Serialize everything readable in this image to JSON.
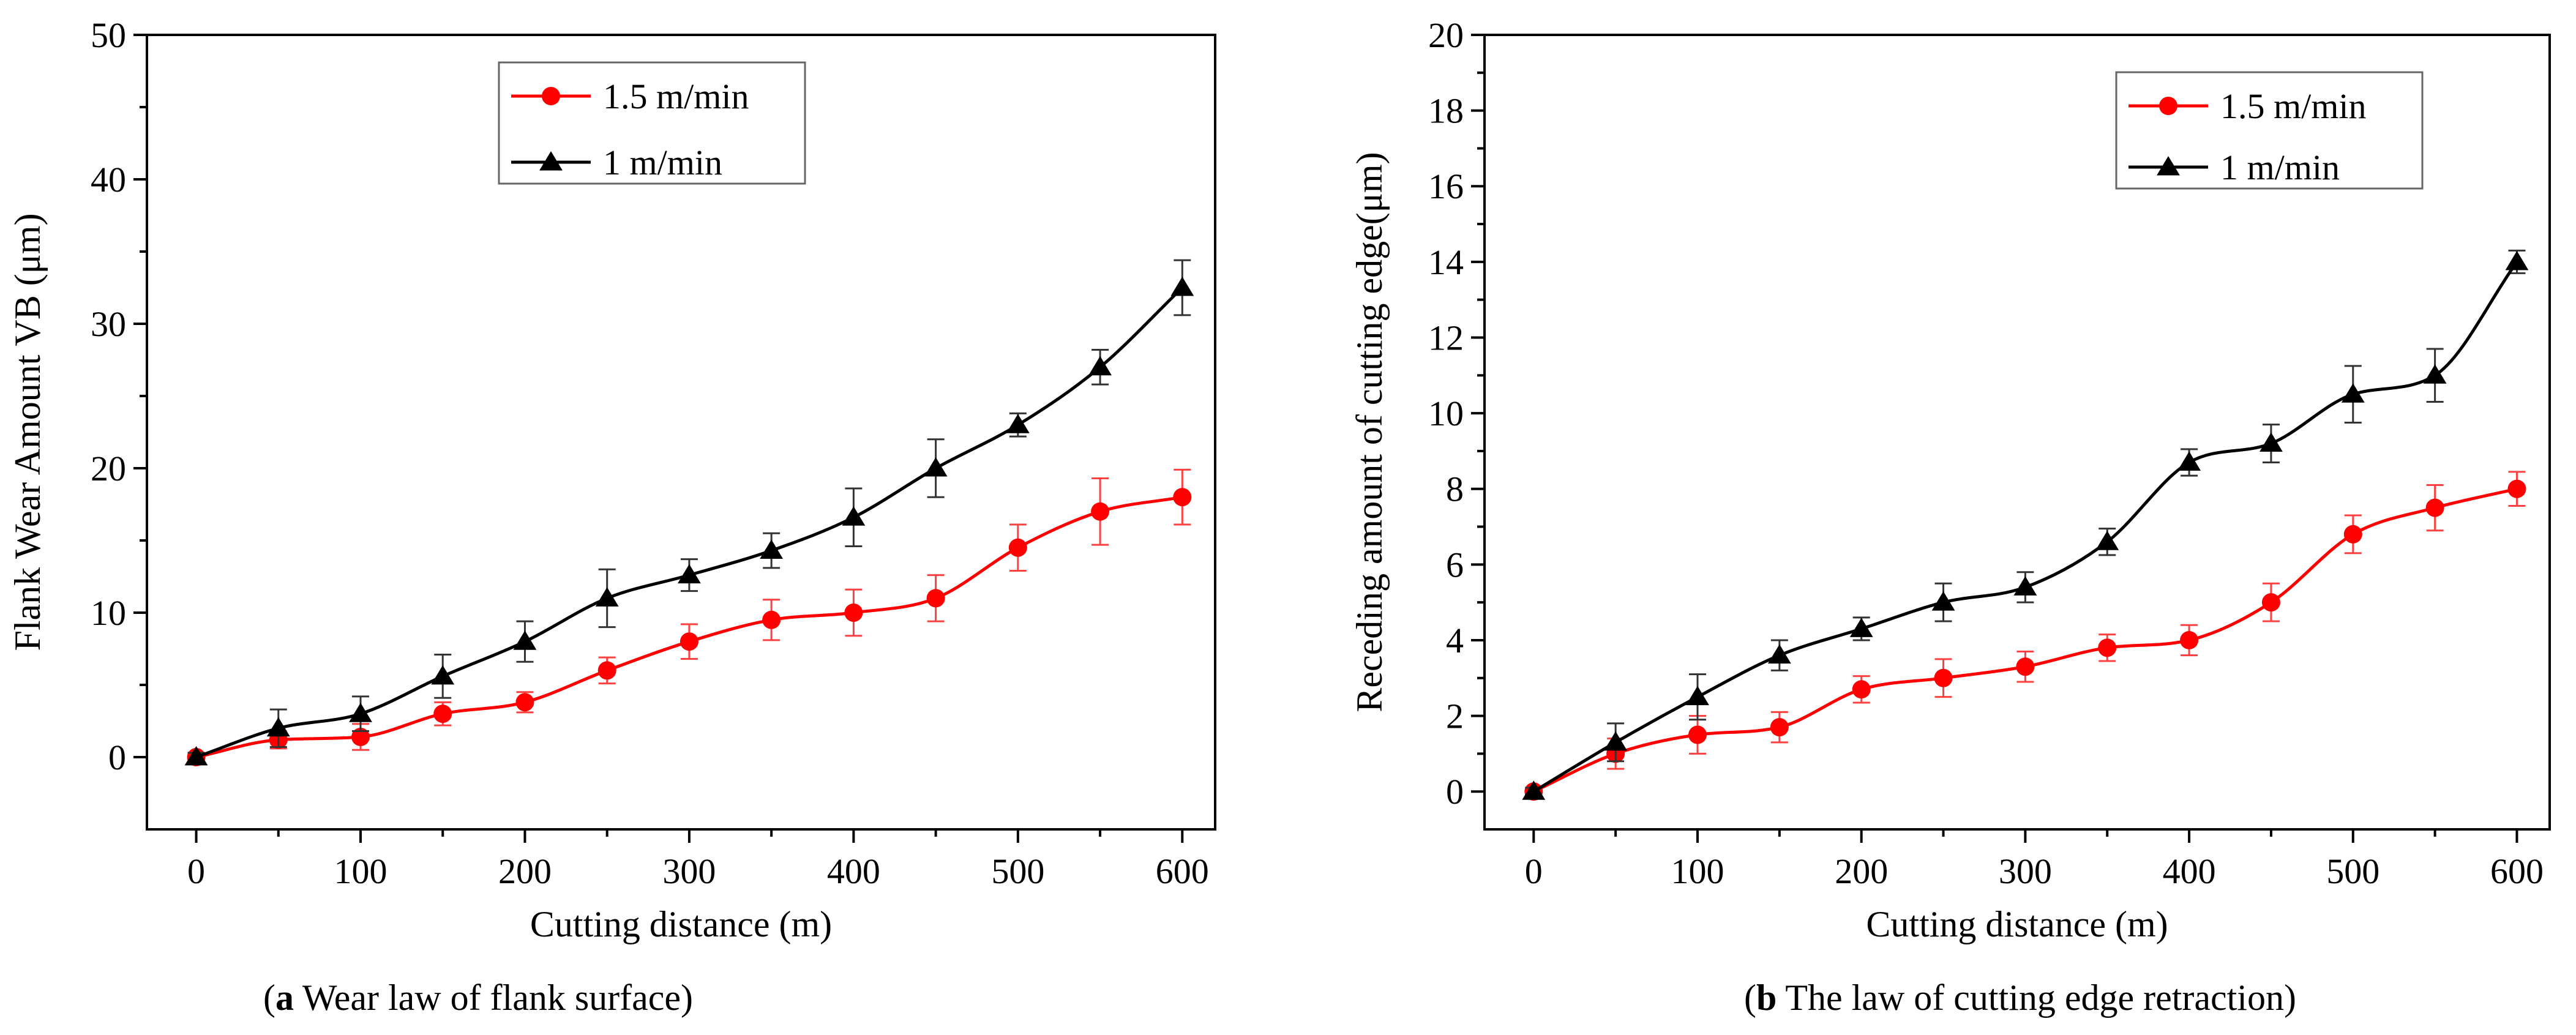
{
  "colors": {
    "series_red": "#ff0000",
    "series_black": "#000000",
    "axis": "#000000",
    "errorbar_red": "#ff4040",
    "errorbar_black": "#333333"
  },
  "captions": [
    {
      "label": "a",
      "text": " Wear law of flank surface"
    },
    {
      "label": "b",
      "text": " The law of cutting edge retraction"
    }
  ],
  "chart_data": [
    {
      "type": "line",
      "title": "",
      "xlabel": "Cutting distance (m)",
      "ylabel": "Flank Wear Amount VB (μm)",
      "xlim": [
        -30,
        620
      ],
      "ylim": [
        -5,
        50
      ],
      "xticks": [
        0,
        100,
        200,
        300,
        400,
        500,
        600
      ],
      "yticks": [
        0,
        10,
        20,
        30,
        40,
        50
      ],
      "yminor": [
        5,
        15,
        25,
        35,
        45
      ],
      "xminor": [
        50,
        150,
        250,
        350,
        450,
        550
      ],
      "legend": "top-center",
      "x": [
        0,
        50,
        100,
        150,
        200,
        250,
        300,
        350,
        400,
        450,
        500,
        550,
        600
      ],
      "series": [
        {
          "name": "1.5 m/min",
          "marker": "circle",
          "color": "#ff0000",
          "values": [
            0,
            1.2,
            1.4,
            3.0,
            3.8,
            6.0,
            8.0,
            9.5,
            10.0,
            11.0,
            14.5,
            17.0,
            18.0
          ],
          "errors": [
            0.3,
            0.6,
            0.9,
            0.8,
            0.7,
            0.9,
            1.2,
            1.4,
            1.6,
            1.6,
            1.6,
            2.3,
            1.9
          ]
        },
        {
          "name": "1 m/min",
          "marker": "triangle",
          "color": "#000000",
          "values": [
            0,
            2.0,
            3.0,
            5.6,
            8.0,
            11.0,
            12.6,
            14.3,
            16.6,
            20.0,
            23.0,
            27.0,
            32.5
          ],
          "errors": [
            0.3,
            1.3,
            1.2,
            1.5,
            1.4,
            2.0,
            1.1,
            1.2,
            2.0,
            2.0,
            0.8,
            1.2,
            1.9
          ]
        }
      ]
    },
    {
      "type": "line",
      "title": "",
      "xlabel": "Cutting distance (m)",
      "ylabel": "Receding amount of cutting edge(μm)",
      "xlim": [
        -30,
        620
      ],
      "ylim": [
        -1,
        20
      ],
      "xticks": [
        0,
        100,
        200,
        300,
        400,
        500,
        600
      ],
      "yticks": [
        0,
        2,
        4,
        6,
        8,
        10,
        12,
        14,
        16,
        18,
        20
      ],
      "yminor": [
        1,
        3,
        5,
        7,
        9,
        11,
        13,
        15,
        17,
        19
      ],
      "xminor": [
        50,
        150,
        250,
        350,
        450,
        550
      ],
      "legend": "top-right",
      "x": [
        0,
        50,
        100,
        150,
        200,
        250,
        300,
        350,
        400,
        450,
        500,
        550,
        600
      ],
      "series": [
        {
          "name": "1.5 m/min",
          "marker": "circle",
          "color": "#ff0000",
          "values": [
            0,
            1.0,
            1.5,
            1.7,
            2.7,
            3.0,
            3.3,
            3.8,
            4.0,
            5.0,
            6.8,
            7.5,
            8.0
          ],
          "errors": [
            0.1,
            0.4,
            0.5,
            0.4,
            0.35,
            0.5,
            0.4,
            0.35,
            0.4,
            0.5,
            0.5,
            0.6,
            0.45
          ]
        },
        {
          "name": "1 m/min",
          "marker": "triangle",
          "color": "#000000",
          "values": [
            0,
            1.3,
            2.5,
            3.6,
            4.3,
            5.0,
            5.4,
            6.6,
            8.7,
            9.2,
            10.5,
            11.0,
            14.0
          ],
          "errors": [
            0.1,
            0.5,
            0.6,
            0.4,
            0.3,
            0.5,
            0.4,
            0.35,
            0.35,
            0.5,
            0.75,
            0.7,
            0.3
          ]
        }
      ]
    }
  ]
}
